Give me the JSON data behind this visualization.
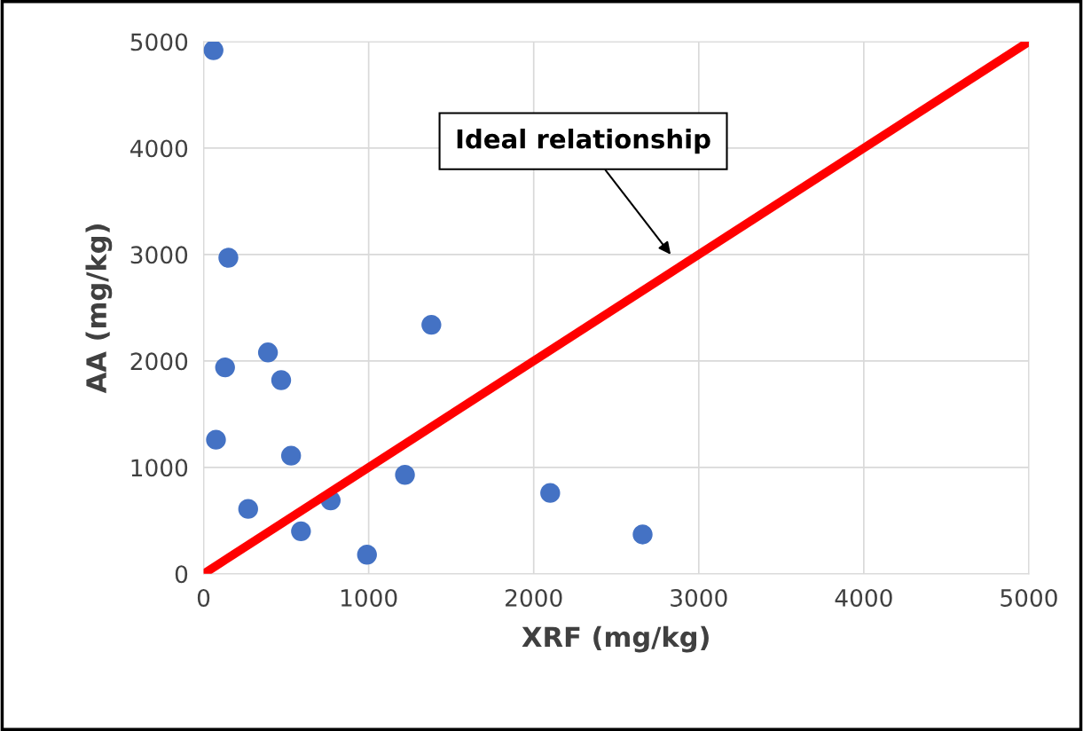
{
  "chart_data": {
    "type": "scatter",
    "xlabel": "XRF (mg/kg)",
    "ylabel": "AA (mg/kg)",
    "xlim": [
      0,
      5000
    ],
    "ylim": [
      0,
      5000
    ],
    "xticks": [
      0,
      1000,
      2000,
      3000,
      4000,
      5000
    ],
    "yticks": [
      0,
      1000,
      2000,
      3000,
      4000,
      5000
    ],
    "grid": true,
    "series": [
      {
        "marker": "circle",
        "color": "#4472c4",
        "x": [
          60,
          150,
          390,
          130,
          470,
          1380,
          75,
          530,
          1220,
          2100,
          770,
          270,
          590,
          990,
          2660
        ],
        "values": [
          4920,
          2970,
          2080,
          1940,
          1820,
          2340,
          1260,
          1110,
          930,
          760,
          690,
          610,
          400,
          180,
          370
        ]
      },
      {
        "type": "line",
        "color": "#ff0000",
        "x": [
          0,
          5000
        ],
        "values": [
          0,
          5000
        ]
      }
    ],
    "annotations": [
      "Ideal relationship"
    ]
  }
}
